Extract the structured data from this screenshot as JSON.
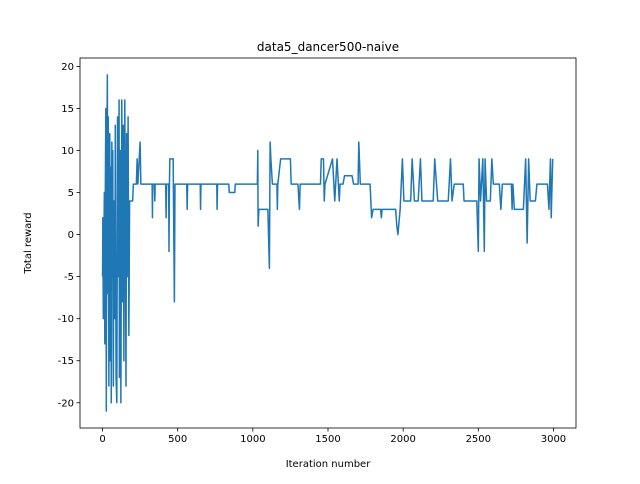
{
  "chart_data": {
    "type": "line",
    "title": "data5_dancer500-naive",
    "x_label": "Iteration number",
    "y_label": "Total reward",
    "xlim": [
      -150,
      3150
    ],
    "ylim": [
      -23,
      21
    ],
    "xticks": [
      0,
      500,
      1000,
      1500,
      2000,
      2500,
      3000
    ],
    "yticks": [
      -20,
      -15,
      -10,
      -5,
      0,
      5,
      10,
      15,
      20
    ],
    "series": [
      {
        "name": "Total reward",
        "color": "#1f77b4",
        "x": [
          0,
          2,
          5,
          8,
          12,
          15,
          18,
          22,
          25,
          28,
          32,
          35,
          38,
          42,
          45,
          48,
          52,
          55,
          58,
          62,
          65,
          68,
          72,
          75,
          80,
          82,
          85,
          90,
          95,
          100,
          105,
          110,
          112,
          118,
          122,
          128,
          133,
          138,
          142,
          148,
          152,
          156,
          160,
          165,
          170,
          175,
          180,
          200,
          205,
          225,
          230,
          235,
          250,
          255,
          330,
          332,
          334,
          345,
          348,
          350,
          420,
          423,
          426,
          440,
          442,
          445,
          448,
          470,
          472,
          478,
          482,
          560,
          563,
          566,
          650,
          652,
          655,
          760,
          762,
          765,
          840,
          843,
          880,
          883,
          1030,
          1033,
          1035,
          1040,
          1100,
          1110,
          1115,
          1120,
          1130,
          1160,
          1163,
          1166,
          1185,
          1250,
          1255,
          1300,
          1310,
          1315,
          1450,
          1455,
          1470,
          1475,
          1480,
          1530,
          1545,
          1560,
          1575,
          1580,
          1600,
          1610,
          1660,
          1670,
          1700,
          1705,
          1715,
          1780,
          1790,
          1800,
          1850,
          1855,
          1860,
          1950,
          1958,
          1965,
          1980,
          1995,
          2005,
          2050,
          2060,
          2075,
          2100,
          2115,
          2125,
          2200,
          2210,
          2230,
          2300,
          2315,
          2325,
          2340,
          2400,
          2405,
          2490,
          2500,
          2505,
          2515,
          2530,
          2540,
          2545,
          2555,
          2580,
          2590,
          2600,
          2640,
          2650,
          2660,
          2720,
          2725,
          2730,
          2740,
          2800,
          2815,
          2825,
          2835,
          2845,
          2880,
          2890,
          2960,
          2970,
          2980,
          2985,
          2995
        ],
        "values": [
          -5,
          2,
          -10,
          -3,
          5,
          -13,
          4,
          15,
          -21,
          8,
          19,
          -7,
          14,
          -18,
          5,
          12,
          -15,
          8,
          -20,
          11,
          -5,
          10,
          -18,
          4,
          4,
          -10,
          13,
          -17,
          -20,
          14,
          -5,
          16,
          -17,
          10,
          -20,
          16,
          -8,
          13,
          -15,
          16,
          0,
          -18,
          12,
          -5,
          14,
          -12,
          4,
          4,
          6,
          6,
          9,
          6,
          11,
          6,
          6,
          2,
          6,
          6,
          4,
          6,
          6,
          2,
          6,
          6,
          -2,
          6,
          9,
          9,
          4,
          -8,
          6,
          6,
          3,
          6,
          6,
          3,
          6,
          6,
          3,
          6,
          6,
          5,
          5,
          6,
          6,
          10,
          1,
          3,
          3,
          -4,
          11,
          9,
          6,
          6,
          3,
          6,
          9,
          9,
          6,
          6,
          3,
          6,
          6,
          9,
          9,
          4,
          6,
          9,
          4,
          9,
          4,
          6,
          6,
          7,
          7,
          6,
          6,
          11,
          6,
          6,
          2,
          3,
          3,
          2,
          3,
          3,
          1,
          0,
          3,
          9,
          4,
          4,
          9,
          4,
          4,
          9,
          4,
          4,
          9,
          4,
          4,
          9,
          4,
          6,
          6,
          4,
          4,
          -2,
          9,
          4,
          9,
          -2,
          9,
          4,
          4,
          9,
          6,
          6,
          3,
          6,
          6,
          3,
          6,
          3,
          3,
          9,
          -1,
          9,
          4,
          4,
          6,
          6,
          3,
          9,
          2,
          9
        ]
      }
    ]
  }
}
